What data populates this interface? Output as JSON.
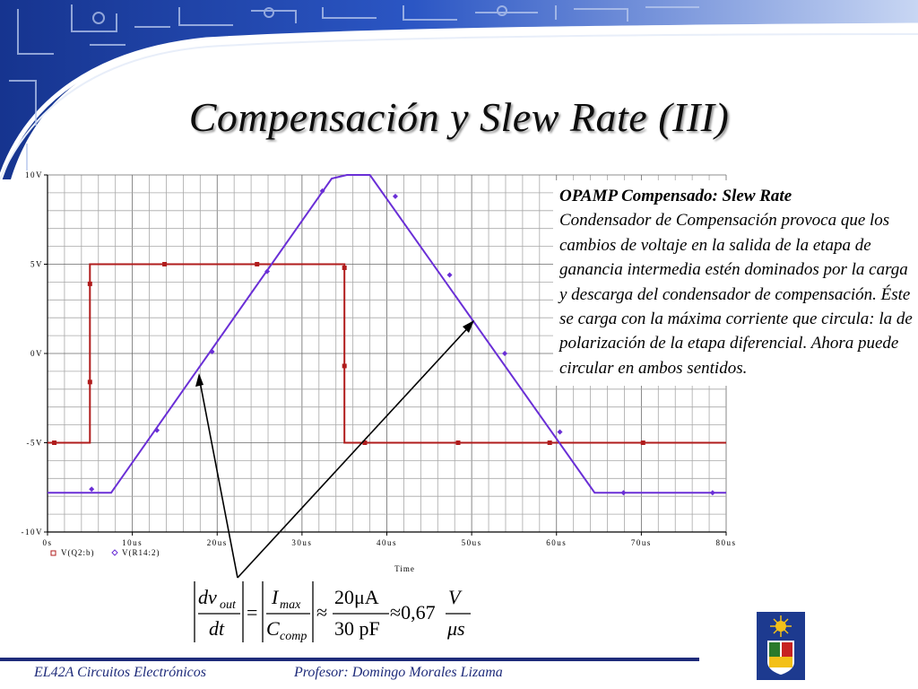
{
  "slide": {
    "title": "Compensación y Slew Rate (III)",
    "text_heading": "OPAMP Compensado: Slew Rate",
    "text_body": "Condensador de Compensación provoca que los cambios de voltaje en la salida de la etapa de ganancia intermedia estén dominados por la carga y descarga del condensador de compensación. Éste se carga con la máxima corriente que circula: la de polarización de la etapa diferencial. Ahora puede circular en ambos sentidos.",
    "footer_left": "EL42A Circuitos Electrónicos",
    "footer_right": "Profesor: Domingo Morales Lizama"
  },
  "formula": {
    "lhs_num": "dv",
    "lhs_num_sub": "out",
    "lhs_den": "dt",
    "mid_num": "I",
    "mid_num_sub": "max",
    "mid_den": "C",
    "mid_den_sub": "comp",
    "ratio_num": "20μA",
    "ratio_den": "30 pF",
    "result": "≈0,67",
    "unit_num": "V",
    "unit_den": "μs",
    "eq": "=",
    "approx": "≈"
  },
  "chart_data": {
    "type": "line",
    "x_ticks": [
      "0s",
      "10us",
      "20us",
      "30us",
      "40us",
      "50us",
      "60us",
      "70us",
      "80us"
    ],
    "y_ticks": [
      "10V",
      "5V",
      "0V",
      "-5V",
      "-10V"
    ],
    "xlabel": "Time",
    "xlim": [
      0,
      80
    ],
    "ylim": [
      -10,
      10
    ],
    "grid": true,
    "legend_position": "bottom-left",
    "series": [
      {
        "name": "V(Q2:b)",
        "color": "#b01c1c",
        "marker": "square",
        "x": [
          0,
          5,
          5,
          35,
          35,
          80
        ],
        "y": [
          -5,
          -5,
          5,
          5,
          -5,
          -5
        ],
        "markers_x": [
          0.8,
          5,
          5,
          13.8,
          24.7,
          35,
          35,
          37.4,
          48.4,
          59.2,
          70.2
        ],
        "markers_y": [
          -5,
          -1.6,
          3.9,
          5,
          5,
          4.8,
          -0.7,
          -5,
          -5,
          -5,
          -5
        ]
      },
      {
        "name": "V(R14:2)",
        "color": "#6a2fd6",
        "marker": "diamond",
        "x": [
          0,
          5,
          7.5,
          33.5,
          35.3,
          38,
          64.5,
          80
        ],
        "y": [
          -7.8,
          -7.8,
          -7.8,
          9.8,
          10,
          10,
          -7.8,
          -7.8
        ],
        "markers_x": [
          5.2,
          12.9,
          19.4,
          25.9,
          32.4,
          41,
          47.4,
          53.9,
          60.4,
          67.9,
          78.4
        ],
        "markers_y": [
          -7.6,
          -4.3,
          0.1,
          4.6,
          9.1,
          8.8,
          4.4,
          0,
          -4.4,
          -7.8,
          -7.8
        ]
      }
    ]
  }
}
